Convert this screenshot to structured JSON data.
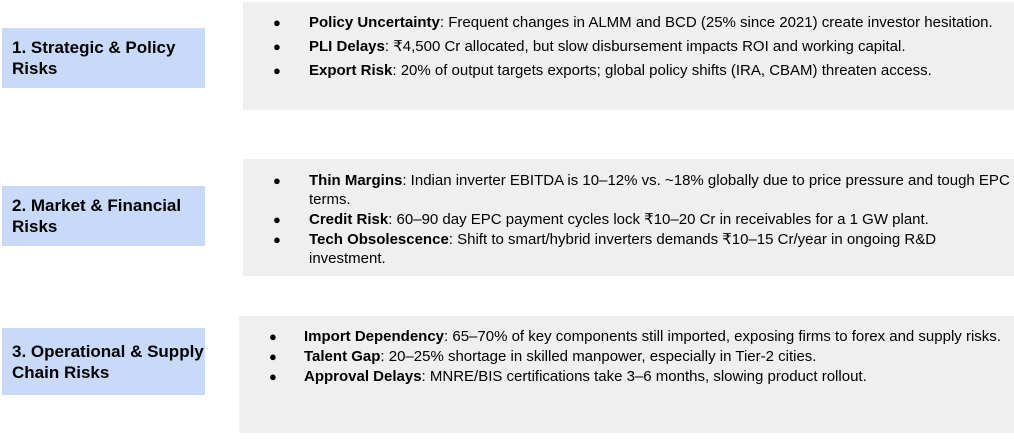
{
  "sections": [
    {
      "label": "1. Strategic & Policy Risks",
      "items": [
        {
          "bullet": "●",
          "term": "Policy Uncertainty",
          "text": ": Frequent changes in ALMM and BCD (25% since 2021) create investor hesitation."
        },
        {
          "bullet": "●",
          "term": "PLI Delays",
          "text": ": ₹4,500 Cr allocated, but slow disbursement impacts ROI and working capital."
        },
        {
          "bullet": "●",
          "term": "Export Risk",
          "text": ": 20% of output targets exports; global policy shifts (IRA, CBAM) threaten access."
        }
      ]
    },
    {
      "label": "2. Market & Financial Risks",
      "items": [
        {
          "bullet": "●",
          "term": "Thin Margins",
          "text": ": Indian inverter EBITDA is 10–12% vs. ~18% globally due to price pressure and tough EPC terms."
        },
        {
          "bullet": "●",
          "term": "Credit Risk",
          "text": ": 60–90 day EPC payment cycles lock ₹10–20 Cr in receivables for a 1 GW plant."
        },
        {
          "bullet": "●",
          "term": "Tech Obsolescence",
          "text": ": Shift to smart/hybrid inverters demands ₹10–15 Cr/year in ongoing R&D investment."
        }
      ]
    },
    {
      "label": "3. Operational & Supply Chain Risks",
      "items": [
        {
          "bullet": "●",
          "term": "Import Dependency",
          "text": ": 65–70% of key components still imported, exposing firms to forex and supply risks."
        },
        {
          "bullet": "●",
          "term": "Talent Gap",
          "text": ": 20–25% shortage in skilled manpower, especially in Tier-2 cities."
        },
        {
          "bullet": "●",
          "term": "Approval Delays",
          "text": ": MNRE/BIS certifications take 3–6 months, slowing product rollout."
        }
      ]
    }
  ]
}
